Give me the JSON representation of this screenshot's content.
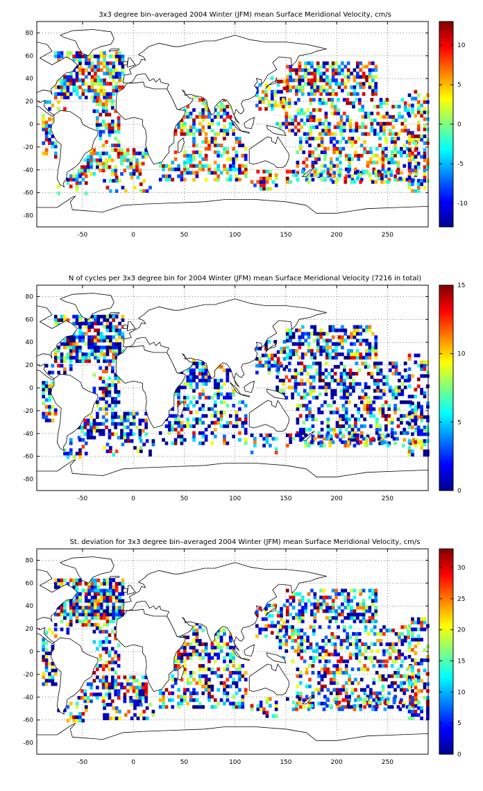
{
  "chart_data": [
    {
      "type": "heatmap",
      "title": "3x3 degree bin–averaged 2004 Winter (JFM) mean Surface Meridional Velocity, cm/s",
      "xlabel": "",
      "ylabel": "",
      "xlim": [
        -95,
        290
      ],
      "ylim": [
        -90,
        90
      ],
      "x_ticks": [
        "-50",
        "0",
        "50",
        "100",
        "150",
        "200",
        "250"
      ],
      "y_ticks": [
        "80",
        "60",
        "40",
        "20",
        "0",
        "-20",
        "-40",
        "-60",
        "-80"
      ],
      "grid": true,
      "bin_size_deg": 3,
      "colormap": "jet",
      "color_range": [
        -13,
        13
      ],
      "colorbar_ticks": [
        "10",
        "5",
        "0",
        "-5",
        "-10"
      ],
      "values_note": "bin field shown in image; individual bin values are not labelled"
    },
    {
      "type": "heatmap",
      "title": "N of cycles per 3x3 degree bin for 2004 Winter (JFM) mean Surface Meridional Velocity (7216 in total)",
      "xlabel": "",
      "ylabel": "",
      "xlim": [
        -95,
        290
      ],
      "ylim": [
        -90,
        90
      ],
      "x_ticks": [
        "-50",
        "0",
        "50",
        "100",
        "150",
        "200",
        "250"
      ],
      "y_ticks": [
        "80",
        "60",
        "40",
        "20",
        "0",
        "-20",
        "-40",
        "-60",
        "-80"
      ],
      "grid": true,
      "bin_size_deg": 3,
      "colormap": "jet",
      "color_range": [
        0,
        15
      ],
      "colorbar_ticks": [
        "15",
        "10",
        "5",
        "0"
      ],
      "values_note": "bin field shown in image; individual bin values are not labelled"
    },
    {
      "type": "heatmap",
      "title": "St. deviation for 3x3 degree bin–averaged 2004 Winter (JFM) mean Surface Meridional Velocity, cm/s",
      "xlabel": "",
      "ylabel": "",
      "xlim": [
        -95,
        290
      ],
      "ylim": [
        -90,
        90
      ],
      "x_ticks": [
        "-50",
        "0",
        "50",
        "100",
        "150",
        "200",
        "250"
      ],
      "y_ticks": [
        "80",
        "60",
        "40",
        "20",
        "0",
        "-20",
        "-40",
        "-60",
        "-80"
      ],
      "grid": true,
      "bin_size_deg": 3,
      "colormap": "jet",
      "color_range": [
        0,
        33
      ],
      "colorbar_ticks": [
        "30",
        "25",
        "20",
        "15",
        "10",
        "5",
        "0"
      ],
      "values_note": "bin field shown in image; individual bin values are not labelled"
    }
  ]
}
